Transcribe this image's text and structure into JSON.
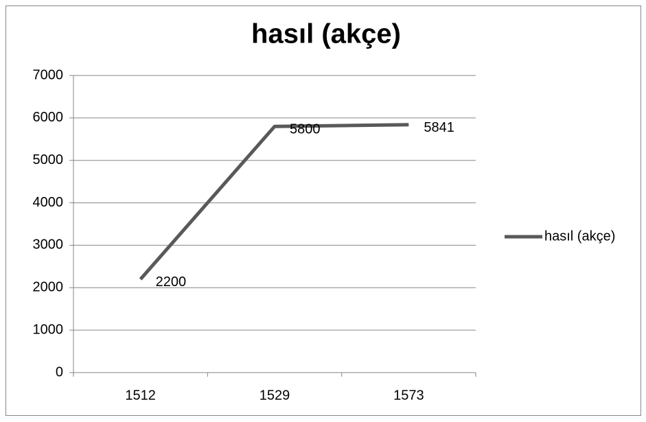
{
  "chart_data": {
    "type": "line",
    "title": "hasıl (akçe)",
    "categories": [
      "1512",
      "1529",
      "1573"
    ],
    "series": [
      {
        "name": "hasıl (akçe)",
        "color": "#595959",
        "values": [
          2200,
          5800,
          5841
        ]
      }
    ],
    "ylim": [
      0,
      7000
    ],
    "yticks": [
      0,
      1000,
      2000,
      3000,
      4000,
      5000,
      6000,
      7000
    ],
    "grid": true,
    "legend": "right",
    "data_labels": true
  }
}
